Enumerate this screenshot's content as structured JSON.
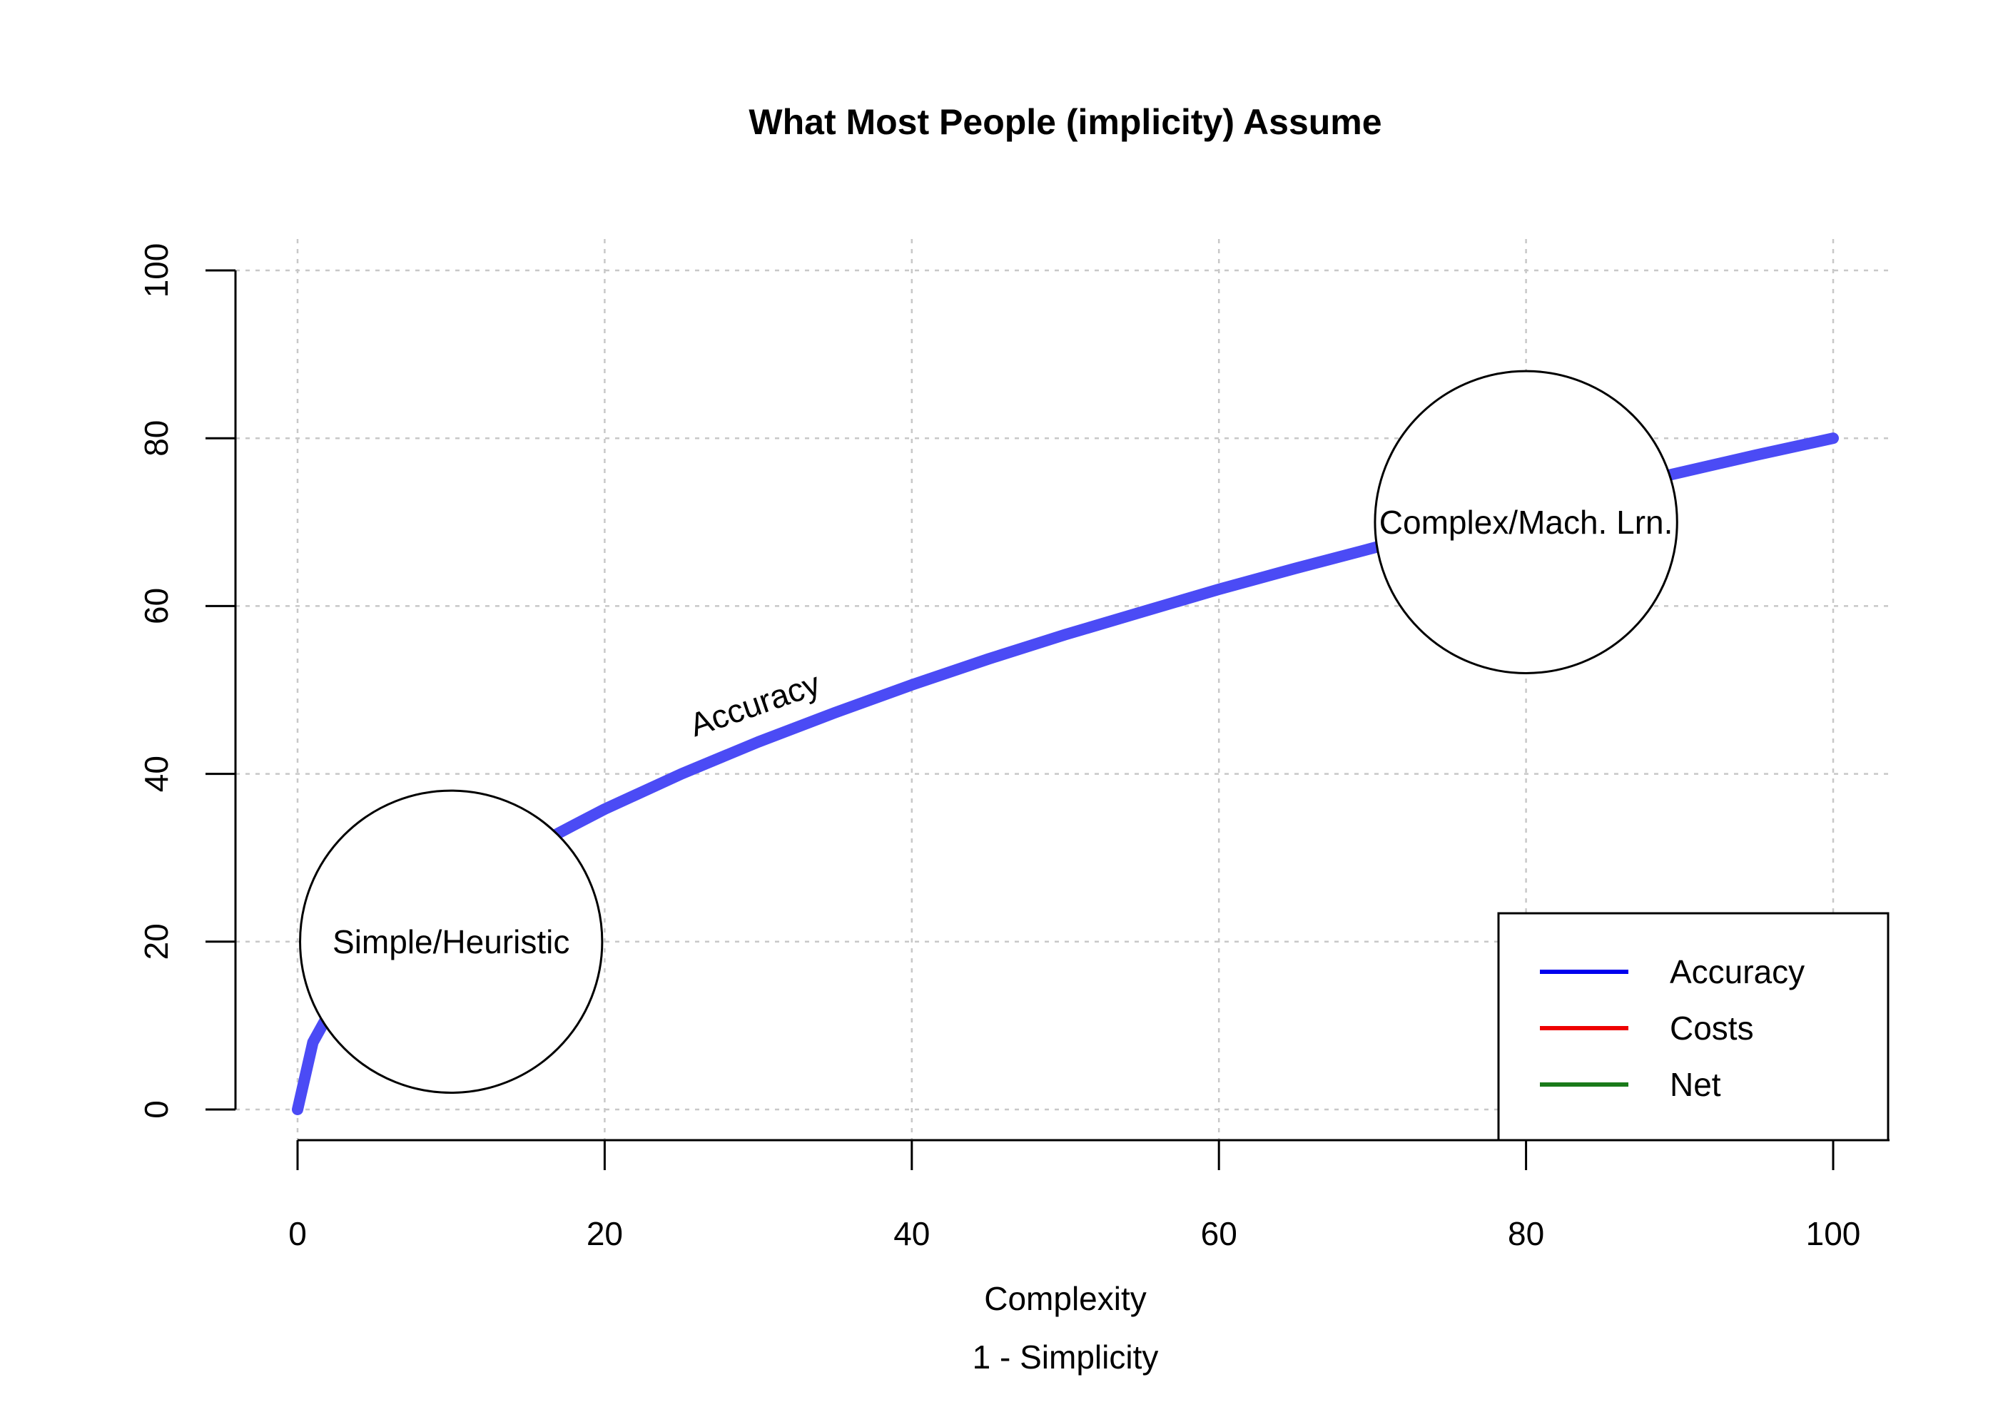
{
  "chart_data": {
    "type": "line",
    "title": "What Most People (implicity) Assume",
    "xlabel": "Complexity",
    "xlabel2": "1 - Simplicity",
    "ylabel": "",
    "xlim": [
      0,
      100
    ],
    "ylim": [
      0,
      100
    ],
    "x_ticks": [
      0,
      20,
      40,
      60,
      80,
      100
    ],
    "y_ticks": [
      0,
      20,
      40,
      60,
      80,
      100
    ],
    "grid": true,
    "series": [
      {
        "name": "Accuracy",
        "color": "#4b4bf5",
        "x": [
          0,
          1,
          2,
          4,
          6,
          8,
          10,
          12,
          15,
          18,
          20,
          25,
          30,
          35,
          40,
          45,
          50,
          55,
          60,
          65,
          70,
          75,
          80,
          85,
          90,
          95,
          100
        ],
        "y": [
          0,
          8,
          11.3,
          16,
          19.6,
          22.6,
          25.3,
          27.7,
          31,
          33.9,
          35.8,
          40,
          43.8,
          47.3,
          50.6,
          53.7,
          56.6,
          59.3,
          62,
          64.5,
          66.9,
          69.3,
          71.6,
          73.8,
          75.9,
          78,
          80
        ]
      }
    ],
    "curve_label": "Accuracy",
    "annotations": [
      {
        "text": "Simple/Heuristic",
        "x": 10,
        "y": 20,
        "radius": 18
      },
      {
        "text": "Complex/Mach. Lrn.",
        "x": 80,
        "y": 70,
        "radius": 18
      }
    ],
    "legend": {
      "position": "bottom-right",
      "entries": [
        {
          "name": "Accuracy",
          "color": "#0000ee"
        },
        {
          "name": "Costs",
          "color": "#ee0000"
        },
        {
          "name": "Net",
          "color": "#1a7a1a"
        }
      ]
    }
  }
}
